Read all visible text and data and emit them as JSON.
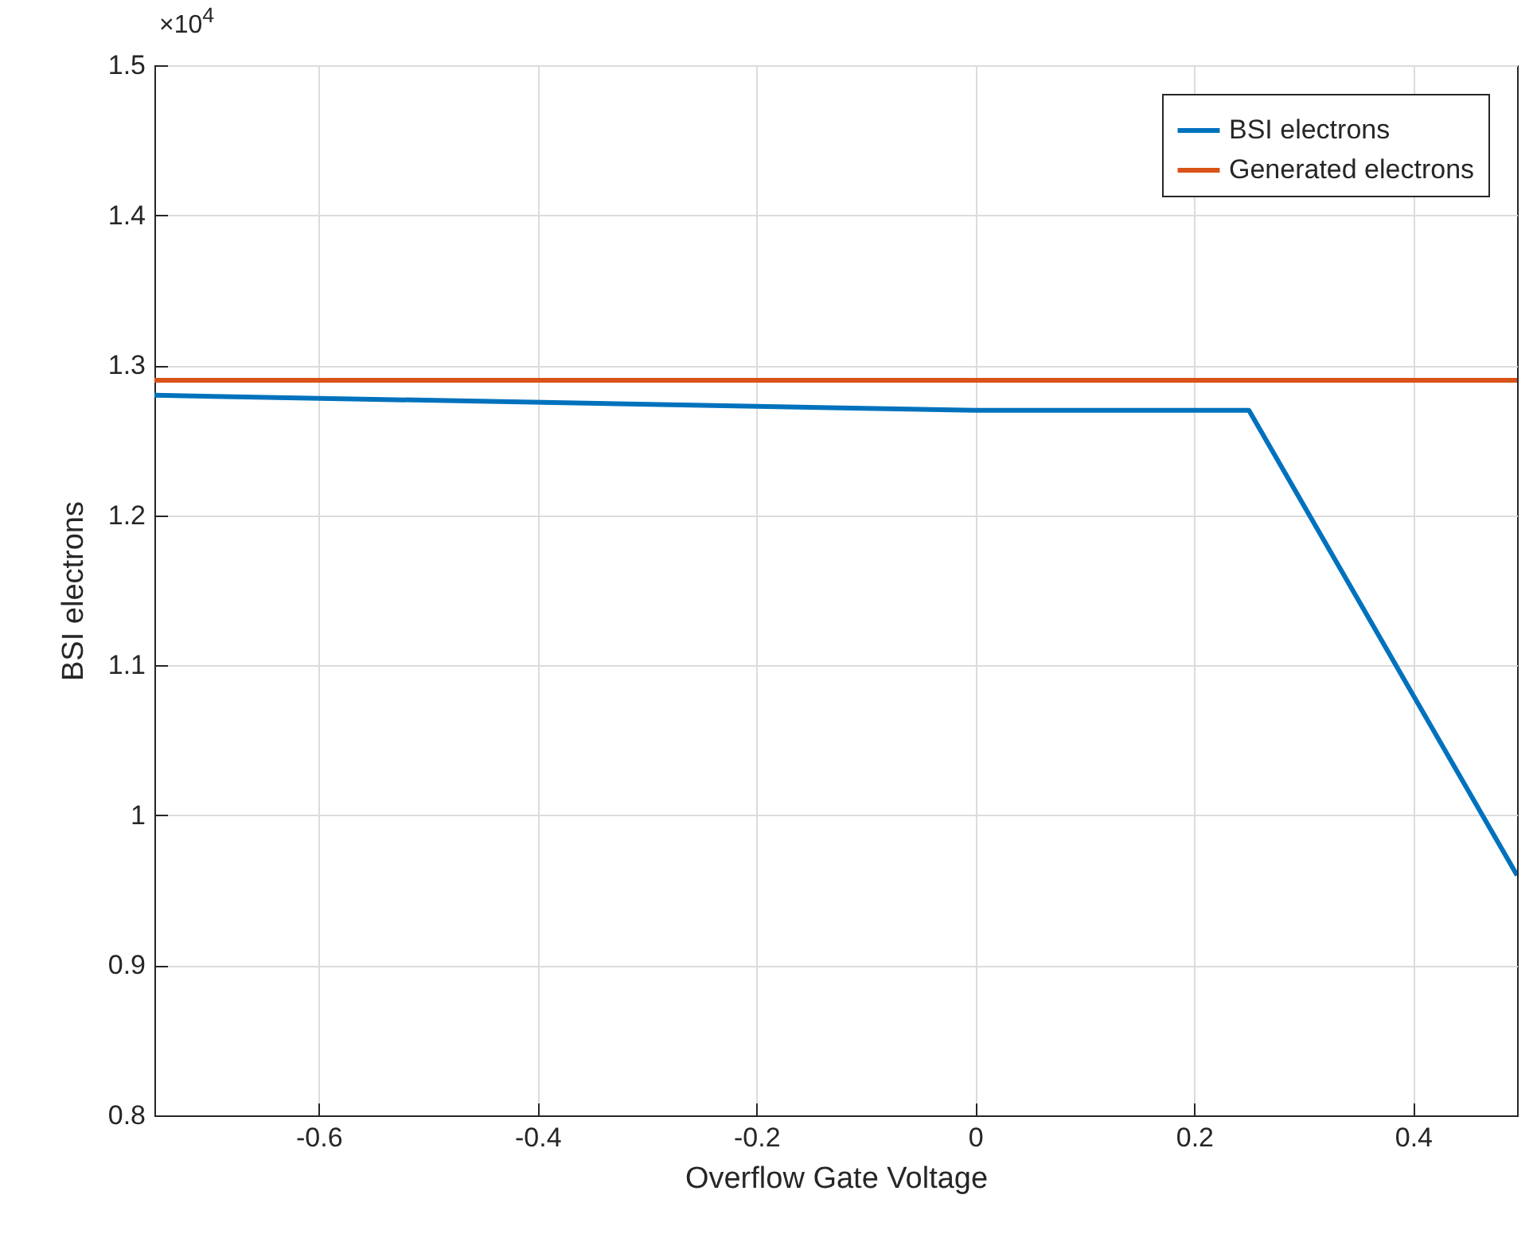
{
  "chart_data": {
    "type": "line",
    "xlabel": "Overflow Gate Voltage",
    "ylabel": "BSI electrons",
    "annotations": [
      "×10$^{4}$"
    ],
    "series": [
      {
        "name": "BSI electrons",
        "color": "#0072bd",
        "x": [
          -0.75,
          0,
          0.25,
          0.495
        ],
        "values": [
          1.28,
          1.27,
          1.27,
          0.96
        ]
      },
      {
        "name": "Generated electrons",
        "color": "#d95319",
        "x": [
          -0.75,
          0,
          0.25,
          0.495
        ],
        "values": [
          1.29,
          1.29,
          1.29,
          1.29
        ]
      }
    ],
    "xlim": [
      -0.75,
      0.495
    ],
    "xticks": [
      -0.6,
      -0.4,
      -0.2,
      0,
      0.2,
      0.4
    ],
    "ylim": [
      0.8,
      1.5
    ],
    "yticks": [
      0.8,
      0.9,
      1,
      1.1,
      1.2,
      1.3,
      1.4,
      1.5
    ],
    "grid": true,
    "legend": "top right",
    "marker": "none",
    "line_style": "solid"
  }
}
